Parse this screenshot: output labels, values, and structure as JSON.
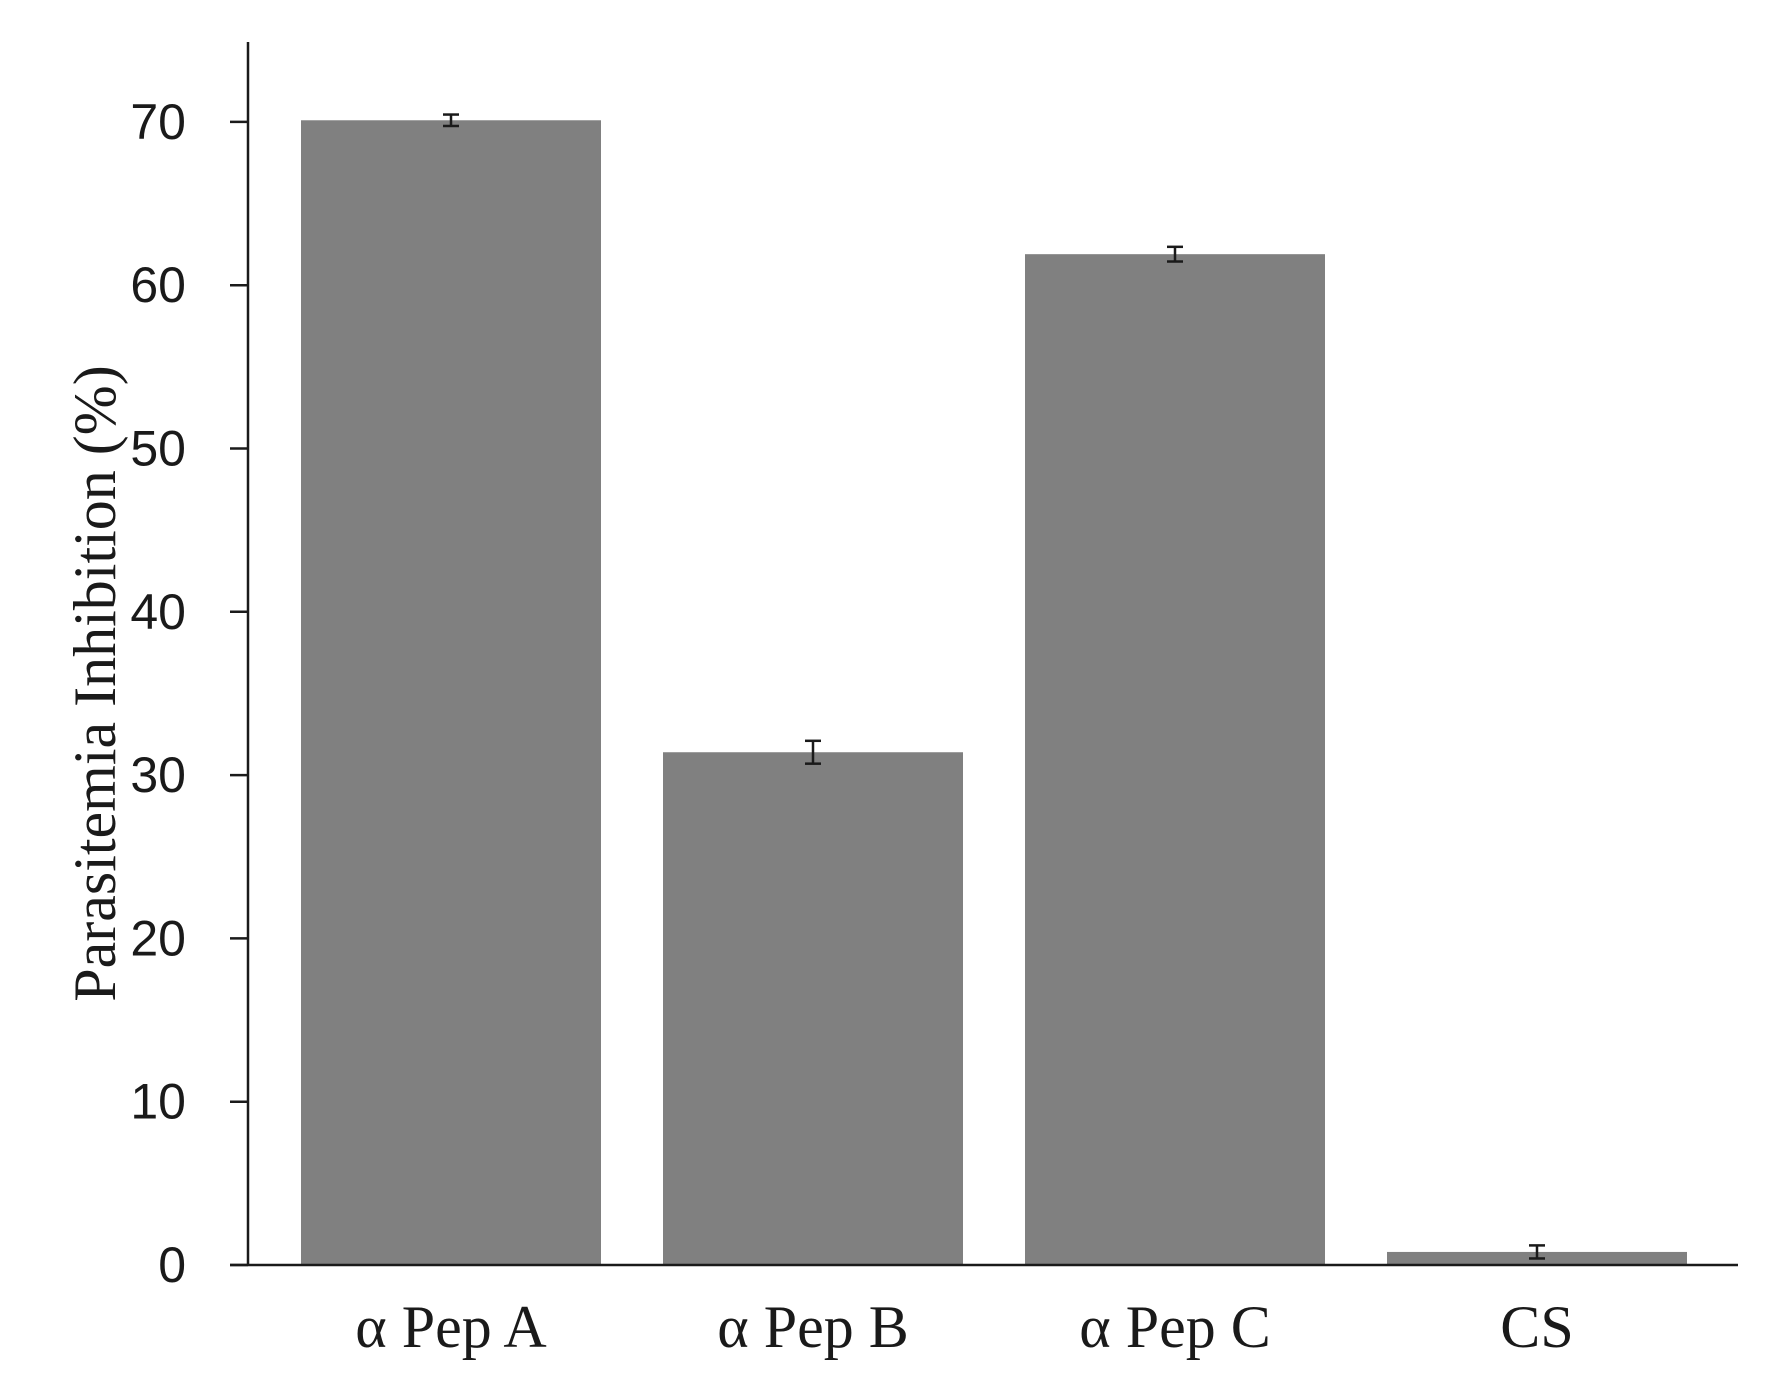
{
  "chart_data": {
    "type": "bar",
    "categories": [
      "α Pep A",
      "α Pep B",
      "α Pep C",
      "CS"
    ],
    "values": [
      70.1,
      31.4,
      61.9,
      0.8
    ],
    "errors": [
      0.35,
      0.7,
      0.45,
      0.4
    ],
    "ylabel": "Parasitemia Inhibition (%)",
    "xlabel": "",
    "title": "",
    "ylim": [
      0,
      75
    ],
    "yticks": [
      0,
      10,
      20,
      30,
      40,
      50,
      60,
      70
    ],
    "ytick_labels": [
      "0",
      "10",
      "20",
      "30",
      "40",
      "50",
      "60",
      "70"
    ],
    "grid": false,
    "bar_color": "#808080",
    "error_bar_color": "#1a1a1a"
  }
}
